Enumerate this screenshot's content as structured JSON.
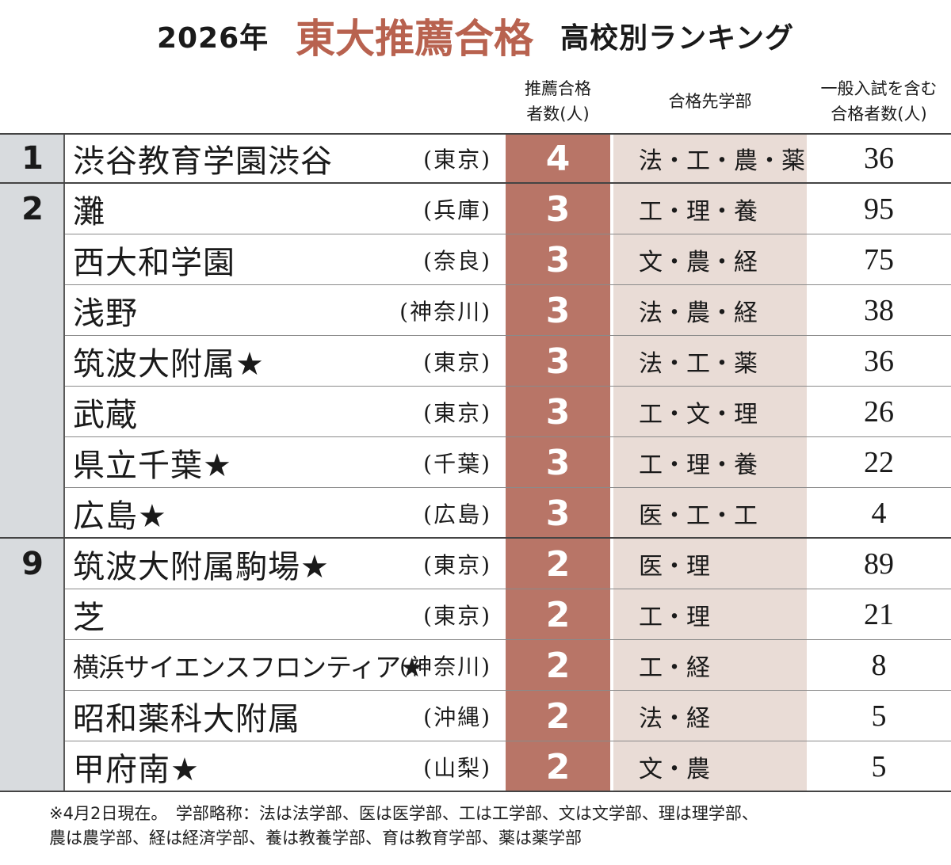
{
  "title": {
    "year": "2026年",
    "main": "東大推薦合格",
    "sub": "高校別ランキング",
    "main_color": "#b8624f"
  },
  "headers": {
    "count": [
      "推薦合格",
      "者数(人)"
    ],
    "faculties": "合格先学部",
    "total": [
      "一般入試を含む",
      "合格者数(人)"
    ]
  },
  "rows": [
    {
      "rank": "1",
      "name": "渋谷教育学園渋谷",
      "pref": "(東京)",
      "count": "4",
      "faculties": "法・工・農・薬",
      "total": "36"
    },
    {
      "rank": "2",
      "name": "灘",
      "pref": "(兵庫)",
      "count": "3",
      "faculties": "工・理・養",
      "total": "95"
    },
    {
      "rank": "",
      "name": "西大和学園",
      "pref": "(奈良)",
      "count": "3",
      "faculties": "文・農・経",
      "total": "75"
    },
    {
      "rank": "",
      "name": "浅野",
      "pref": "(神奈川)",
      "count": "3",
      "faculties": "法・農・経",
      "total": "38"
    },
    {
      "rank": "",
      "name": "筑波大附属★",
      "pref": "(東京)",
      "count": "3",
      "faculties": "法・工・薬",
      "total": "36"
    },
    {
      "rank": "",
      "name": "武蔵",
      "pref": "(東京)",
      "count": "3",
      "faculties": "工・文・理",
      "total": "26"
    },
    {
      "rank": "",
      "name": "県立千葉★",
      "pref": "(千葉)",
      "count": "3",
      "faculties": "工・理・養",
      "total": "22"
    },
    {
      "rank": "",
      "name": "広島★",
      "pref": "(広島)",
      "count": "3",
      "faculties": "医・工・工",
      "total": "4"
    },
    {
      "rank": "9",
      "name": "筑波大附属駒場★",
      "pref": "(東京)",
      "count": "2",
      "faculties": "医・理",
      "total": "89"
    },
    {
      "rank": "",
      "name": "芝",
      "pref": "(東京)",
      "count": "2",
      "faculties": "工・理",
      "total": "21"
    },
    {
      "rank": "",
      "name": "横浜サイエンスフロンティア★",
      "pref": "(神奈川)",
      "count": "2",
      "faculties": "工・経",
      "total": "8"
    },
    {
      "rank": "",
      "name": "昭和薬科大附属",
      "pref": "(沖縄)",
      "count": "2",
      "faculties": "法・経",
      "total": "5"
    },
    {
      "rank": "",
      "name": "甲府南★",
      "pref": "(山梨)",
      "count": "2",
      "faculties": "文・農",
      "total": "5"
    }
  ],
  "notes": [
    "※4月2日現在。　学部略称：法は法学部、医は医学部、工は工学部、文は文学部、理は理学部、",
    "農は農学部、経は経済学部、養は教養学部、育は教育学部、薬は薬学部"
  ],
  "colors": {
    "rank_column": "#d8dbde",
    "count_column": "#b87567",
    "faculty_column": "#e9dcd6"
  }
}
